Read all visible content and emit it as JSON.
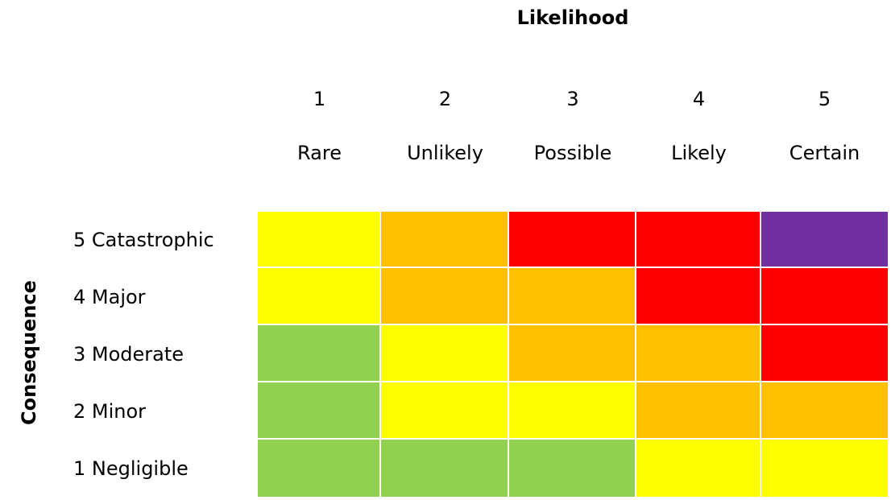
{
  "chart_data": {
    "type": "heatmap",
    "xlabel": "Likelihood",
    "ylabel": "Consequence",
    "x_categories": [
      {
        "num": "1",
        "name": "Rare"
      },
      {
        "num": "2",
        "name": "Unlikely"
      },
      {
        "num": "3",
        "name": "Possible"
      },
      {
        "num": "4",
        "name": "Likely"
      },
      {
        "num": "5",
        "name": "Certain"
      }
    ],
    "y_categories": [
      "5 Catastrophic",
      "4 Major",
      "3 Moderate",
      "2 Minor",
      "1 Negligible"
    ],
    "colors": {
      "green": "#92D050",
      "yellow": "#FFFF00",
      "orange": "#FFC000",
      "red": "#FF0000",
      "purple": "#7030A0"
    },
    "cells": [
      [
        "yellow",
        "orange",
        "red",
        "red",
        "purple"
      ],
      [
        "yellow",
        "orange",
        "orange",
        "red",
        "red"
      ],
      [
        "green",
        "yellow",
        "orange",
        "orange",
        "red"
      ],
      [
        "green",
        "yellow",
        "yellow",
        "orange",
        "orange"
      ],
      [
        "green",
        "green",
        "green",
        "yellow",
        "yellow"
      ]
    ]
  }
}
